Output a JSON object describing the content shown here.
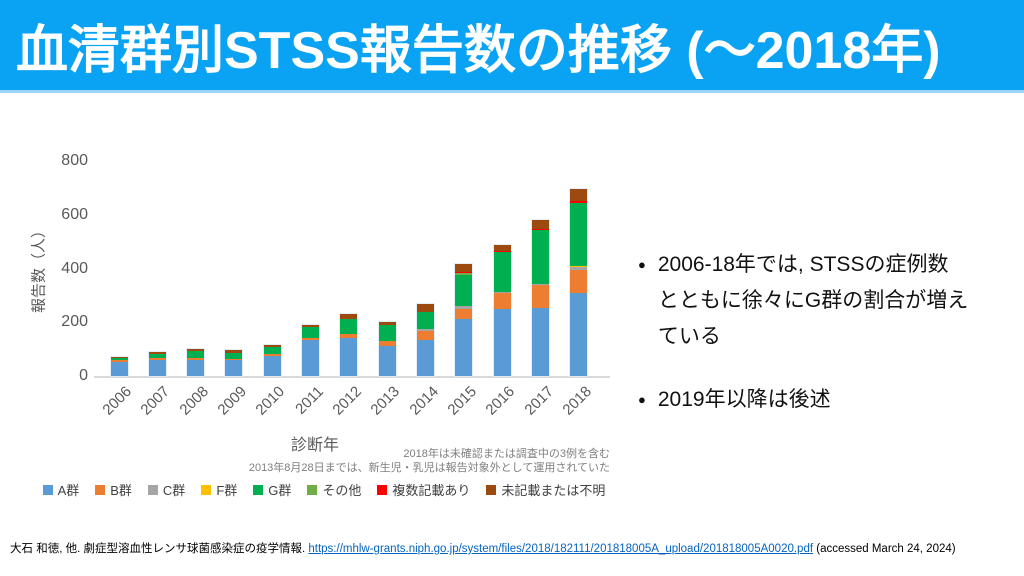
{
  "slide": {
    "title": "血清群別STSS報告数の推移 (～2018年)",
    "banner_color": "#0aa2f2"
  },
  "chart_data": {
    "type": "bar",
    "stacked": true,
    "xlabel": "診断年",
    "ylabel": "報告数（人）",
    "ylim": [
      0,
      800
    ],
    "yticks": [
      0,
      200,
      400,
      600,
      800
    ],
    "grid": false,
    "legend_position": "bottom",
    "categories": [
      "2006",
      "2007",
      "2008",
      "2009",
      "2010",
      "2011",
      "2012",
      "2013",
      "2014",
      "2015",
      "2016",
      "2017",
      "2018"
    ],
    "series": [
      {
        "name": "A群",
        "color": "#5B9BD5",
        "values": [
          52,
          60,
          60,
          60,
          75,
          133,
          140,
          110,
          133,
          212,
          250,
          254,
          310
        ]
      },
      {
        "name": "B群",
        "color": "#ED7D31",
        "values": [
          6,
          7,
          6,
          5,
          5,
          7,
          17,
          19,
          35,
          37,
          60,
          85,
          85
        ]
      },
      {
        "name": "C群",
        "color": "#A5A5A5",
        "values": [
          0,
          0,
          0,
          0,
          0,
          0,
          0,
          0,
          5,
          10,
          4,
          3,
          10
        ]
      },
      {
        "name": "F群",
        "color": "#FFC000",
        "values": [
          0,
          0,
          0,
          0,
          0,
          0,
          0,
          0,
          0,
          0,
          0,
          0,
          4
        ]
      },
      {
        "name": "G群",
        "color": "#00B050",
        "values": [
          8,
          14,
          28,
          22,
          28,
          42,
          55,
          61,
          66,
          118,
          146,
          200,
          235
        ]
      },
      {
        "name": "その他",
        "color": "#70AD47",
        "values": [
          0,
          0,
          0,
          0,
          0,
          0,
          0,
          0,
          0,
          5,
          0,
          0,
          0
        ]
      },
      {
        "name": "複数記載あり",
        "color": "#FF0000",
        "values": [
          0,
          0,
          0,
          0,
          0,
          0,
          0,
          0,
          0,
          4,
          6,
          6,
          7
        ]
      },
      {
        "name": "未記載または不明",
        "color": "#9C4A0F",
        "values": [
          5,
          7,
          7,
          9,
          7,
          9,
          19,
          12,
          28,
          30,
          23,
          31,
          44
        ]
      }
    ],
    "totals": [
      71,
      88,
      101,
      96,
      115,
      191,
      231,
      202,
      267,
      416,
      489,
      579,
      695
    ],
    "notes": [
      "2018年は未確認または調査中の3例を含む",
      "2013年8月28日までは、新生児・乳児は報告対象外として運用されていた"
    ]
  },
  "bullets": [
    {
      "text": "2006-18年では, STSSの症例数\nとともに徐々にG群の割合が増え\nている"
    },
    {
      "text": "2019年以降は後述"
    }
  ],
  "bullet_marker": "●",
  "footer": {
    "prefix": "大石 和徳, 他. 劇症型溶血性レンサ球菌感染症の疫学情報. ",
    "link": "https://mhlw-grants.niph.go.jp/system/files/2018/182111/201818005A_upload/201818005A0020.pdf",
    "suffix": " (accessed March 24, 2024)",
    "link_color": "#0563C1"
  }
}
